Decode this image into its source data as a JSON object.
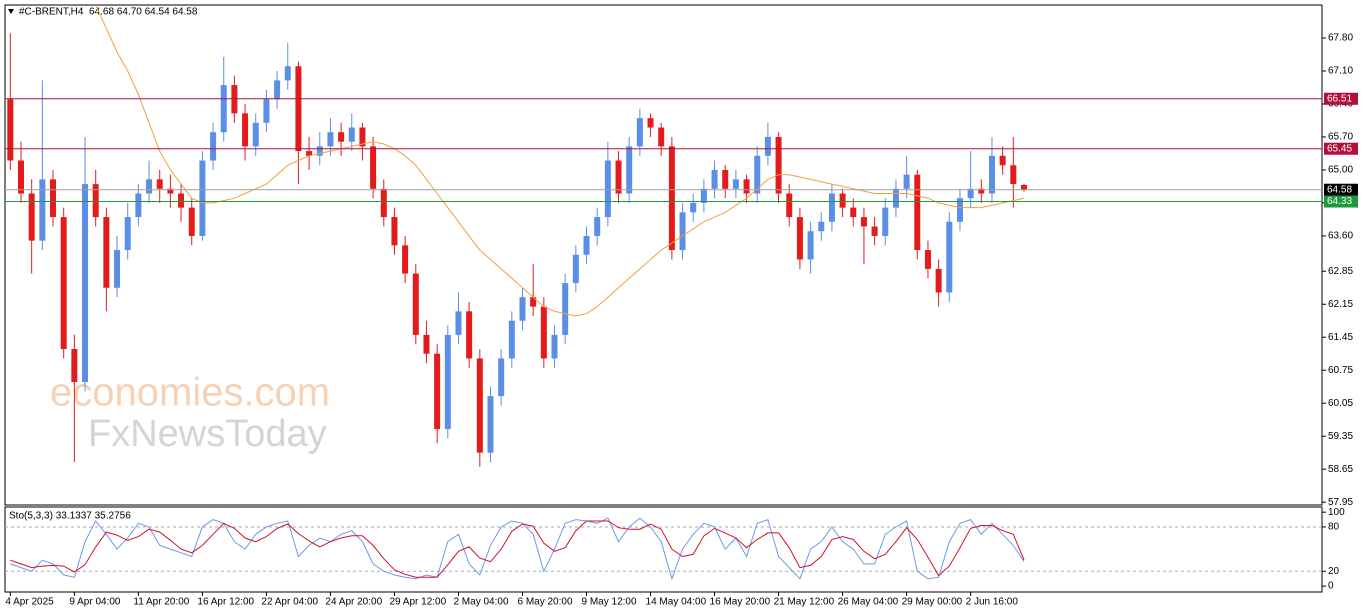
{
  "chart_data": [
    {
      "type": "candlestick",
      "title": "#C-BRENT,H4",
      "subtitle": "64.68 64.70 64.54 64.58",
      "annotations": [
        "economies.com",
        "FxNewsToday"
      ],
      "categories": [
        "4 Apr 2025",
        null,
        null,
        null,
        null,
        null,
        "9 Apr 04:00",
        null,
        null,
        null,
        null,
        null,
        "11 Apr 20:00",
        null,
        null,
        null,
        null,
        null,
        "16 Apr 12:00",
        null,
        null,
        null,
        null,
        null,
        "22 Apr 04:00",
        null,
        null,
        null,
        null,
        null,
        "24 Apr 20:00",
        null,
        null,
        null,
        null,
        null,
        "29 Apr 12:00",
        null,
        null,
        null,
        null,
        null,
        "2 May 04:00",
        null,
        null,
        null,
        null,
        null,
        "6 May 20:00",
        null,
        null,
        null,
        null,
        null,
        "9 May 12:00",
        null,
        null,
        null,
        null,
        null,
        "14 May 04:00",
        null,
        null,
        null,
        null,
        null,
        "16 May 20:00",
        null,
        null,
        null,
        null,
        null,
        "21 May 12:00",
        null,
        null,
        null,
        null,
        null,
        "26 May 04:00",
        null,
        null,
        null,
        null,
        null,
        "29 May 00:00",
        null,
        null,
        null,
        null,
        null,
        "2 Jun 16:00",
        null,
        null,
        null,
        null,
        null
      ],
      "open": [
        66.5,
        65.2,
        64.5,
        63.5,
        64.8,
        64.0,
        61.2,
        60.5,
        64.7,
        64.0,
        62.5,
        63.3,
        64.0,
        64.5,
        64.8,
        64.6,
        64.5,
        64.2,
        63.6,
        65.2,
        65.8,
        66.8,
        66.2,
        65.5,
        66.0,
        66.5,
        66.9,
        67.2,
        65.4,
        65.3,
        65.5,
        65.8,
        65.6,
        65.9,
        65.5,
        64.6,
        64.0,
        63.4,
        62.8,
        61.5,
        61.1,
        59.5,
        61.5,
        62.0,
        61.0,
        59.0,
        60.2,
        61.0,
        61.8,
        62.3,
        62.1,
        61.0,
        61.5,
        62.6,
        63.2,
        63.6,
        64.0,
        65.2,
        64.5,
        65.5,
        66.1,
        65.9,
        65.5,
        63.3,
        64.1,
        64.3,
        64.6,
        65.0,
        64.6,
        64.8,
        64.5,
        65.3,
        65.7,
        64.5,
        64.0,
        63.1,
        63.7,
        63.9,
        64.5,
        64.2,
        64.0,
        63.8,
        63.6,
        64.2,
        64.6,
        64.9,
        63.3,
        62.9,
        62.4,
        63.9,
        64.4,
        64.6,
        64.5,
        65.3,
        65.1,
        64.68
      ],
      "high": [
        67.9,
        65.6,
        64.8,
        66.9,
        65.0,
        64.2,
        61.5,
        65.7,
        65.0,
        64.2,
        63.6,
        64.3,
        64.7,
        65.2,
        65.0,
        64.9,
        64.7,
        64.4,
        65.4,
        66.0,
        67.4,
        67.0,
        66.4,
        66.2,
        66.7,
        67.1,
        67.7,
        67.3,
        65.7,
        65.8,
        66.1,
        66.0,
        66.2,
        66.0,
        65.7,
        64.8,
        64.2,
        63.6,
        63.0,
        61.8,
        61.3,
        61.7,
        62.4,
        62.2,
        61.2,
        60.4,
        61.2,
        62.0,
        62.5,
        63.0,
        62.3,
        61.7,
        62.8,
        63.4,
        63.8,
        64.2,
        65.6,
        65.4,
        65.7,
        66.3,
        66.2,
        66.0,
        65.7,
        64.3,
        64.5,
        64.8,
        65.2,
        65.1,
        65.0,
        64.9,
        65.5,
        66.0,
        65.8,
        64.7,
        64.2,
        63.9,
        64.1,
        64.7,
        64.6,
        64.4,
        64.2,
        64.0,
        64.4,
        64.8,
        65.3,
        65.0,
        63.5,
        63.1,
        64.1,
        64.6,
        65.4,
        64.8,
        65.7,
        65.5,
        65.7,
        64.7
      ],
      "low": [
        65.0,
        64.3,
        62.8,
        63.3,
        63.8,
        61.0,
        58.8,
        60.3,
        63.8,
        62.0,
        62.3,
        63.1,
        63.8,
        64.3,
        64.3,
        64.2,
        63.9,
        63.4,
        63.5,
        65.0,
        65.6,
        66.0,
        65.2,
        65.3,
        65.8,
        66.3,
        66.7,
        64.7,
        65.0,
        65.1,
        65.3,
        65.3,
        65.4,
        65.2,
        64.4,
        63.8,
        63.2,
        62.6,
        61.3,
        60.9,
        59.2,
        59.3,
        61.3,
        60.8,
        58.7,
        58.8,
        60.0,
        60.8,
        61.6,
        61.9,
        60.8,
        60.8,
        61.3,
        62.4,
        63.0,
        63.4,
        63.8,
        64.3,
        64.3,
        65.3,
        65.7,
        65.3,
        63.1,
        63.1,
        63.9,
        64.1,
        64.4,
        64.4,
        64.4,
        64.3,
        64.3,
        65.1,
        64.3,
        63.8,
        62.9,
        62.8,
        63.5,
        63.7,
        64.0,
        63.8,
        63.0,
        63.4,
        63.4,
        64.0,
        64.4,
        63.1,
        62.7,
        62.1,
        62.2,
        63.7,
        64.2,
        64.3,
        64.3,
        64.9,
        64.2,
        64.54
      ],
      "close": [
        65.2,
        64.5,
        63.5,
        64.8,
        64.0,
        61.2,
        60.5,
        64.7,
        64.0,
        62.5,
        63.3,
        64.0,
        64.5,
        64.8,
        64.6,
        64.5,
        64.2,
        63.6,
        65.2,
        65.8,
        66.8,
        66.2,
        65.5,
        66.0,
        66.5,
        66.9,
        67.2,
        65.4,
        65.3,
        65.5,
        65.8,
        65.6,
        65.9,
        65.5,
        64.6,
        64.0,
        63.4,
        62.8,
        61.5,
        61.1,
        59.5,
        61.5,
        62.0,
        61.0,
        59.0,
        60.2,
        61.0,
        61.8,
        62.3,
        62.1,
        61.0,
        61.5,
        62.6,
        63.2,
        63.6,
        64.0,
        65.2,
        64.5,
        65.5,
        66.1,
        65.9,
        65.5,
        63.3,
        64.1,
        64.3,
        64.6,
        65.0,
        64.6,
        64.8,
        64.5,
        65.3,
        65.7,
        64.5,
        64.0,
        63.1,
        63.7,
        63.9,
        64.5,
        64.2,
        64.0,
        63.8,
        63.6,
        64.2,
        64.6,
        64.9,
        63.3,
        62.9,
        62.4,
        63.9,
        64.4,
        64.6,
        64.5,
        65.3,
        65.1,
        64.7,
        64.58
      ],
      "bull_color": "#5b8ee6",
      "bear_color": "#e31b1b",
      "ma": {
        "color": "#f0a040",
        "values": [
          null,
          null,
          null,
          null,
          null,
          null,
          null,
          null,
          68.5,
          68.0,
          67.5,
          67.1,
          66.6,
          66.0,
          65.4,
          65.0,
          64.7,
          64.4,
          64.3,
          64.3,
          64.35,
          64.4,
          64.5,
          64.6,
          64.7,
          64.9,
          65.1,
          65.2,
          65.3,
          65.35,
          65.4,
          65.45,
          65.5,
          65.55,
          65.6,
          65.55,
          65.45,
          65.3,
          65.1,
          64.8,
          64.5,
          64.2,
          63.9,
          63.6,
          63.3,
          63.1,
          62.9,
          62.7,
          62.5,
          62.3,
          62.1,
          62.0,
          61.95,
          61.9,
          61.95,
          62.1,
          62.3,
          62.5,
          62.7,
          62.9,
          63.1,
          63.3,
          63.45,
          63.6,
          63.75,
          63.9,
          64.0,
          64.1,
          64.25,
          64.4,
          64.6,
          64.8,
          64.9,
          64.9,
          64.85,
          64.8,
          64.75,
          64.7,
          64.65,
          64.6,
          64.55,
          64.5,
          64.5,
          64.5,
          64.5,
          64.45,
          64.4,
          64.3,
          64.25,
          64.2,
          64.2,
          64.2,
          64.25,
          64.3,
          64.35,
          64.4
        ]
      },
      "levels": [
        {
          "value": 66.51,
          "color": "#b0103a"
        },
        {
          "value": 65.45,
          "color": "#b0103a"
        },
        {
          "value": 64.58,
          "color": "#a0a0a0"
        },
        {
          "value": 64.33,
          "color": "#1e9a3c"
        }
      ],
      "ylim": [
        57.89,
        68.5
      ],
      "yticks": [
        {
          "value": 67.8,
          "label": "67.80"
        },
        {
          "value": 67.1,
          "label": "67.10"
        },
        {
          "value": 66.4,
          "label": "66.40"
        },
        {
          "value": 65.7,
          "label": "65.70"
        },
        {
          "value": 65,
          "label": "65.00"
        },
        {
          "value": 64.3,
          "label": "64.30"
        },
        {
          "value": 63.6,
          "label": "63.60"
        },
        {
          "value": 62.85,
          "label": "62.85"
        },
        {
          "value": 62.15,
          "label": "62.15"
        },
        {
          "value": 61.45,
          "label": "61.45"
        },
        {
          "value": 60.75,
          "label": "60.75"
        },
        {
          "value": 60.05,
          "label": "60.05"
        },
        {
          "value": 59.35,
          "label": "59.35"
        },
        {
          "value": 58.65,
          "label": "58.65"
        },
        {
          "value": 57.95,
          "label": "57.95"
        }
      ]
    },
    {
      "type": "line",
      "title": "Sto(5,3,3) 33.1337 35.2756",
      "series": [
        {
          "color": "#6a9be8",
          "values": [
            30,
            25,
            20,
            35,
            30,
            15,
            12,
            60,
            88,
            70,
            50,
            65,
            85,
            80,
            55,
            50,
            45,
            40,
            80,
            90,
            85,
            60,
            50,
            70,
            80,
            85,
            88,
            40,
            55,
            65,
            60,
            70,
            75,
            60,
            30,
            20,
            15,
            12,
            10,
            15,
            12,
            60,
            70,
            30,
            15,
            55,
            80,
            88,
            85,
            70,
            20,
            50,
            85,
            90,
            88,
            85,
            92,
            60,
            80,
            92,
            80,
            60,
            10,
            50,
            70,
            85,
            80,
            50,
            65,
            40,
            85,
            90,
            40,
            25,
            10,
            50,
            60,
            80,
            60,
            50,
            30,
            30,
            70,
            80,
            88,
            20,
            10,
            12,
            60,
            85,
            90,
            70,
            85,
            70,
            55,
            33.1337
          ]
        },
        {
          "color": "#d0102a",
          "values": [
            35,
            30,
            25,
            27,
            28,
            27,
            19,
            29,
            53,
            73,
            69,
            62,
            67,
            77,
            73,
            62,
            50,
            45,
            55,
            70,
            85,
            78,
            65,
            60,
            67,
            78,
            84,
            71,
            61,
            53,
            60,
            65,
            68,
            68,
            55,
            37,
            22,
            16,
            12,
            12,
            12,
            29,
            47,
            53,
            38,
            33,
            50,
            74,
            84,
            81,
            58,
            47,
            52,
            75,
            88,
            88,
            88,
            79,
            77,
            77,
            84,
            77,
            50,
            40,
            43,
            68,
            78,
            72,
            65,
            52,
            63,
            72,
            72,
            52,
            25,
            28,
            40,
            63,
            67,
            63,
            47,
            37,
            43,
            60,
            79,
            63,
            39,
            14,
            27,
            52,
            78,
            82,
            82,
            75,
            70,
            35.2756
          ]
        }
      ],
      "levels": [
        20,
        80
      ],
      "ylim": [
        -8,
        107
      ],
      "yticks": [
        0,
        20,
        80,
        100
      ]
    }
  ]
}
